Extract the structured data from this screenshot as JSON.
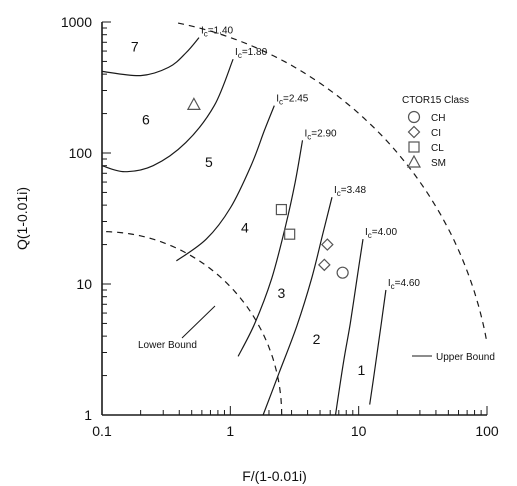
{
  "chart_data": {
    "type": "scatter",
    "xlabel": "F/(1-0.01i)",
    "ylabel": "Q(1-0.01i)",
    "xscale": "log",
    "yscale": "log",
    "xlim": [
      0.1,
      100
    ],
    "ylim": [
      1,
      1000
    ],
    "x_tick_labels": [
      "0.1",
      "1",
      "10",
      "100"
    ],
    "y_tick_labels": [
      "1",
      "10",
      "100",
      "1000"
    ],
    "x_ticks": [
      0.1,
      1,
      10,
      100
    ],
    "y_ticks": [
      1,
      10,
      100,
      1000
    ],
    "ic_contours": [
      {
        "label": "I",
        "sub": "c",
        "value": "=1.40",
        "points": [
          [
            0.1,
            420
          ],
          [
            0.2,
            390
          ],
          [
            0.33,
            450
          ],
          [
            0.45,
            580
          ],
          [
            0.57,
            760
          ]
        ]
      },
      {
        "label": "I",
        "sub": "c",
        "value": "=1.80",
        "points": [
          [
            0.1,
            80
          ],
          [
            0.15,
            72
          ],
          [
            0.25,
            80
          ],
          [
            0.45,
            120
          ],
          [
            0.75,
            230
          ],
          [
            1.05,
            520
          ]
        ]
      },
      {
        "label": "I",
        "sub": "c",
        "value": "=2.45",
        "points": [
          [
            0.38,
            15
          ],
          [
            0.65,
            22
          ],
          [
            1.0,
            38
          ],
          [
            1.45,
            80
          ],
          [
            1.85,
            150
          ],
          [
            2.2,
            230
          ]
        ]
      },
      {
        "label": "I",
        "sub": "c",
        "value": "=2.90",
        "points": [
          [
            1.15,
            2.8
          ],
          [
            1.55,
            5
          ],
          [
            2.1,
            11
          ],
          [
            2.7,
            28
          ],
          [
            3.2,
            60
          ],
          [
            3.65,
            125
          ]
        ]
      },
      {
        "label": "I",
        "sub": "c",
        "value": "=3.48",
        "points": [
          [
            1.8,
            1
          ],
          [
            2.4,
            2.1
          ],
          [
            3.3,
            4.8
          ],
          [
            4.3,
            11
          ],
          [
            5.3,
            25
          ],
          [
            6.2,
            46
          ]
        ]
      },
      {
        "label": "I",
        "sub": "c",
        "value": "=4.00",
        "points": [
          [
            6.6,
            1
          ],
          [
            7.6,
            2.5
          ],
          [
            8.6,
            5
          ],
          [
            9.7,
            11
          ],
          [
            10.8,
            22
          ]
        ]
      },
      {
        "label": "I",
        "sub": "c",
        "value": "=4.60",
        "points": [
          [
            12.2,
            1.2
          ],
          [
            13.5,
            2.4
          ],
          [
            15.0,
            5
          ],
          [
            16.3,
            9
          ]
        ]
      }
    ],
    "upper_bound": {
      "label": "Upper Bound",
      "radius_decades": 3.05
    },
    "lower_bound": {
      "label": "Lower Bound",
      "radius_decades": 1.4
    },
    "zones": [
      {
        "label": "7",
        "x": 0.18,
        "y": 650
      },
      {
        "label": "6",
        "x": 0.22,
        "y": 180
      },
      {
        "label": "5",
        "x": 0.68,
        "y": 85
      },
      {
        "label": "4",
        "x": 1.3,
        "y": 27
      },
      {
        "label": "3",
        "x": 2.5,
        "y": 8.5
      },
      {
        "label": "2",
        "x": 4.7,
        "y": 3.8
      },
      {
        "label": "1",
        "x": 10.5,
        "y": 2.2
      }
    ],
    "legend": {
      "title": "CTOR15 Class",
      "position": "top-right",
      "entries": [
        {
          "name": "CH",
          "marker": "circle"
        },
        {
          "name": "CI",
          "marker": "diamond"
        },
        {
          "name": "CL",
          "marker": "square"
        },
        {
          "name": "SM",
          "marker": "triangle"
        }
      ]
    },
    "series": [
      {
        "name": "CH",
        "marker": "circle",
        "points": [
          [
            7.5,
            12.2
          ]
        ]
      },
      {
        "name": "CI",
        "marker": "diamond",
        "points": [
          [
            5.7,
            20
          ],
          [
            5.4,
            14
          ]
        ]
      },
      {
        "name": "CL",
        "marker": "square",
        "points": [
          [
            2.5,
            37
          ],
          [
            2.9,
            24
          ]
        ]
      },
      {
        "name": "SM",
        "marker": "triangle",
        "points": [
          [
            0.52,
            235
          ]
        ]
      }
    ]
  },
  "colors": {
    "line": "#1a1a1a",
    "marker": "#555555",
    "background": "#ffffff"
  }
}
